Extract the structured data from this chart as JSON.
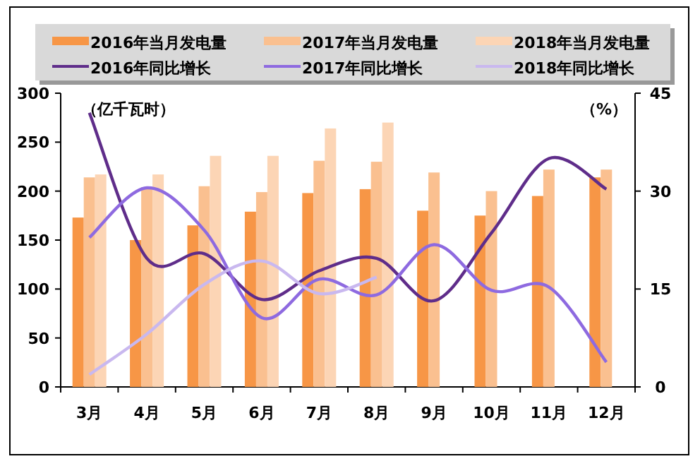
{
  "chart_data": {
    "type": "bar",
    "categories": [
      "3月",
      "4月",
      "5月",
      "6月",
      "7月",
      "8月",
      "9月",
      "10月",
      "11月",
      "12月"
    ],
    "ylabel": "（亿千瓦时）",
    "y2label": "（%）",
    "ylim": [
      0,
      300
    ],
    "yticks": [
      0,
      50,
      100,
      150,
      200,
      250,
      300
    ],
    "y2lim": [
      0,
      45
    ],
    "y2ticks": [
      0,
      15,
      30,
      45
    ],
    "legend": "top",
    "grid": false,
    "series": [
      {
        "name": "2016年当月发电量",
        "color": "#f79646",
        "values": [
          173,
          150,
          165,
          179,
          198,
          202,
          180,
          175,
          195,
          214
        ]
      },
      {
        "name": "2017年当月发电量",
        "color": "#fac090",
        "values": [
          214,
          204,
          205,
          199,
          231,
          230,
          219,
          200,
          222,
          222
        ]
      },
      {
        "name": "2018年当月发电量",
        "color": "#fcd5b5",
        "values": [
          217,
          217,
          236,
          236,
          264,
          270,
          null,
          null,
          null,
          null
        ]
      },
      {
        "name": "2016年同比增长",
        "type": "line",
        "axis": "y2",
        "color": "#5f2d8a",
        "values": [
          42,
          19.7,
          20.4,
          13.4,
          17.8,
          19.7,
          13.2,
          23.6,
          35,
          30.3
        ]
      },
      {
        "name": "2017年同比增长",
        "type": "line",
        "axis": "y2",
        "color": "#8e6ae0",
        "values": [
          22.9,
          30.5,
          24,
          10.6,
          16.5,
          14.1,
          21.8,
          14.8,
          15.3,
          3.8
        ]
      },
      {
        "name": "2018年同比增长",
        "type": "line",
        "axis": "y2",
        "color": "#c9b8ef",
        "values": [
          1.9,
          8.1,
          15.7,
          19.3,
          14.3,
          16.8,
          null,
          null,
          null,
          null
        ]
      }
    ]
  }
}
